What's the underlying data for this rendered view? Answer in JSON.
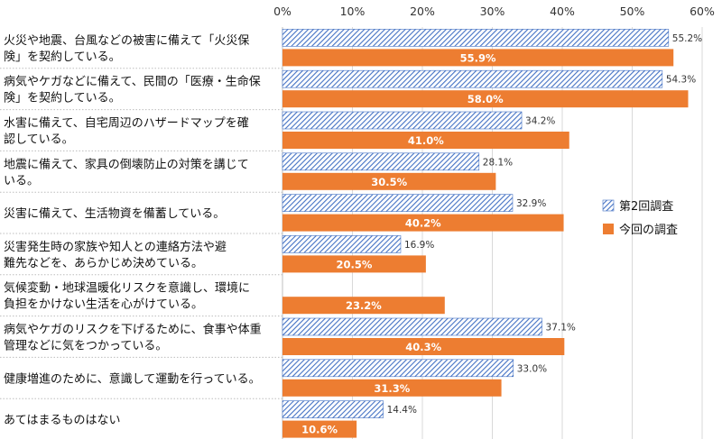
{
  "chart_data": {
    "type": "bar",
    "orientation": "horizontal",
    "categories": [
      [
        "火災や地震、台風などの被害に備えて「火災保",
        "険」を契約している。"
      ],
      [
        "病気やケガなどに備えて、民間の「医療・生命保",
        "険」を契約している。"
      ],
      [
        "水害に備えて、自宅周辺のハザードマップを確",
        "認している。"
      ],
      [
        "地震に備えて、家具の倒壊防止の対策を講じて",
        "いる。"
      ],
      [
        "災害に備えて、生活物資を備蓄している。"
      ],
      [
        "災害発生時の家族や知人との連絡方法や避",
        "難先などを、あらかじめ決めている。"
      ],
      [
        "気候変動・地球温暖化リスクを意識し、環境に",
        "負担をかけない生活を心がけている。"
      ],
      [
        "病気やケガのリスクを下げるために、食事や体重",
        "管理などに気をつかっている。"
      ],
      [
        "健康増進のために、意識して運動を行っている。"
      ],
      [
        "あてはまるものはない"
      ]
    ],
    "series": [
      {
        "name": "第2回調査",
        "values": [
          55.2,
          54.3,
          34.2,
          28.1,
          32.9,
          16.9,
          null,
          37.1,
          33.0,
          14.4
        ],
        "labels": [
          "55.2%",
          "54.3%",
          "34.2%",
          "28.1%",
          "32.9%",
          "16.9%",
          "",
          "37.1%",
          "33.0%",
          "14.4%"
        ],
        "style": "hatched",
        "color": "#4472C4"
      },
      {
        "name": "今回の調査",
        "values": [
          55.9,
          58.0,
          41.0,
          30.5,
          40.2,
          20.5,
          23.2,
          40.3,
          31.3,
          10.6
        ],
        "labels": [
          "55.9%",
          "58.0%",
          "41.0%",
          "30.5%",
          "40.2%",
          "20.5%",
          "23.2%",
          "40.3%",
          "31.3%",
          "10.6%"
        ],
        "style": "solid",
        "color": "#ED7D31"
      }
    ],
    "xlim": [
      0,
      60
    ],
    "xticks": [
      "0%",
      "10%",
      "20%",
      "30%",
      "40%",
      "50%",
      "60%"
    ],
    "x_axis_position": "top",
    "grid": true,
    "legend": "right"
  }
}
